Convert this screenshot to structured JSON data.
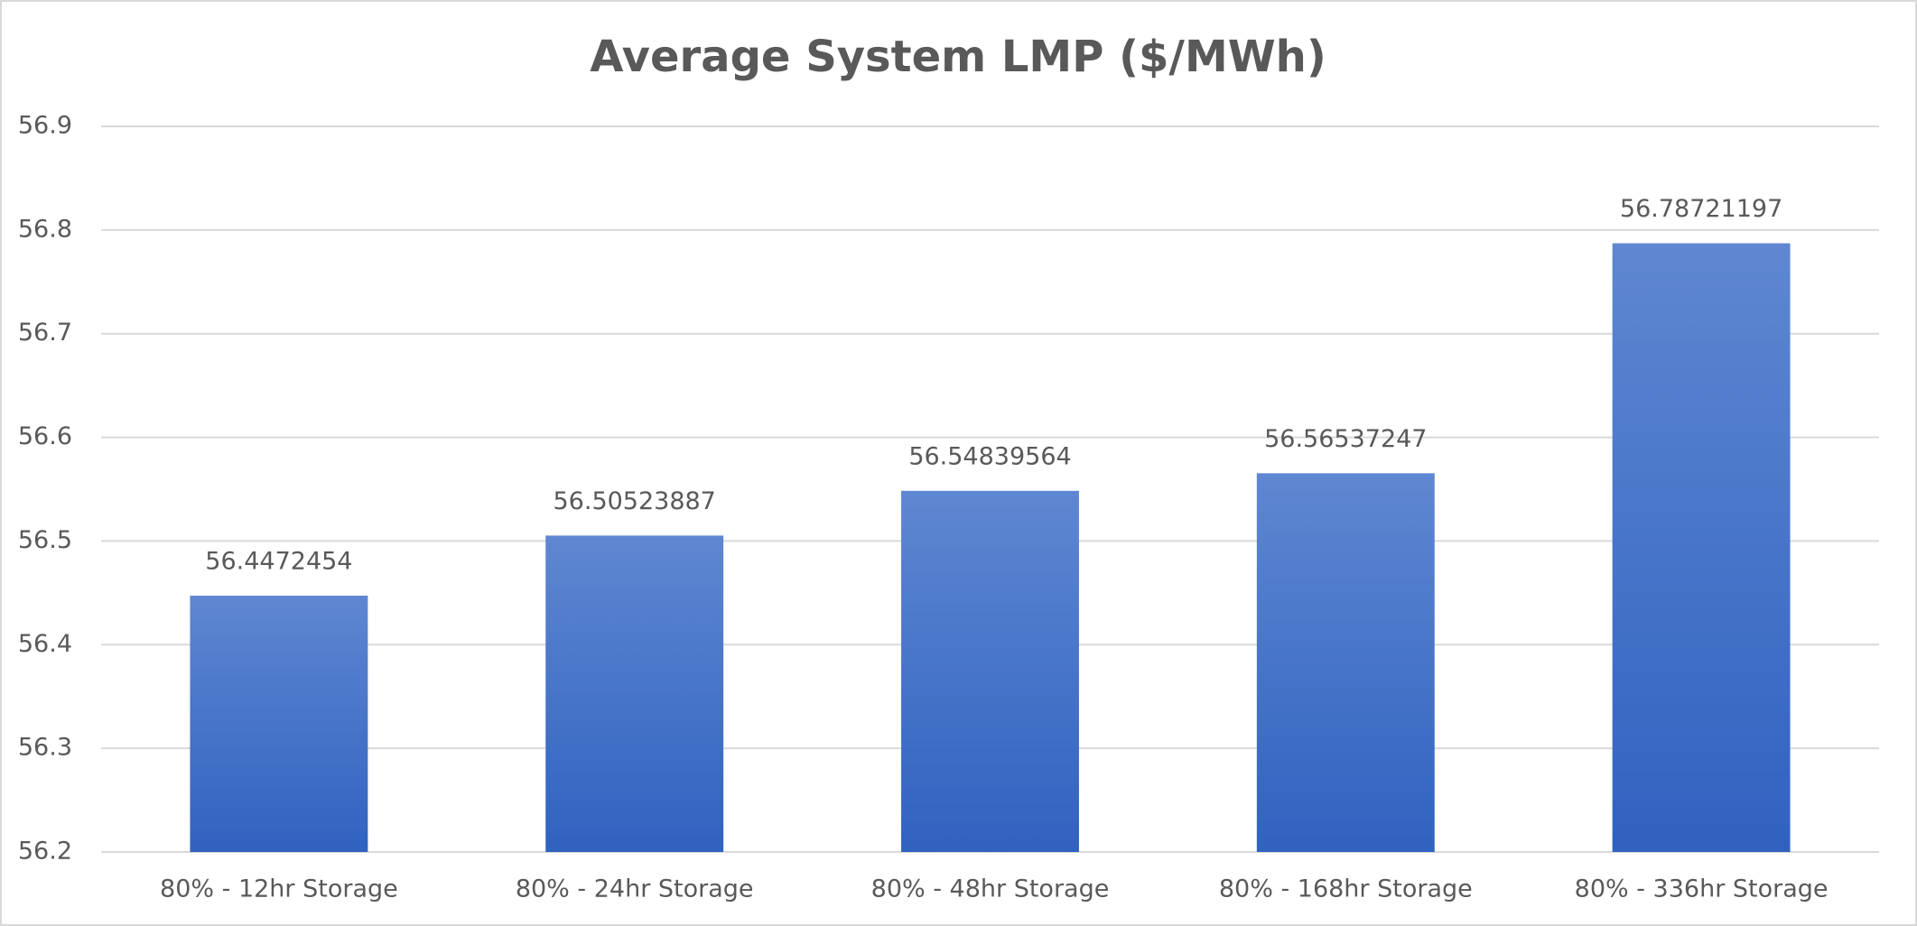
{
  "chart_data": {
    "type": "bar",
    "title": "Average System LMP ($/MWh)",
    "categories": [
      "80% - 12hr Storage",
      "80% - 24hr Storage",
      "80% - 48hr Storage",
      "80% - 168hr Storage",
      "80% - 336hr Storage"
    ],
    "values": [
      56.4472454,
      56.50523887,
      56.54839564,
      56.56537247,
      56.78721197
    ],
    "color": "#4472c4",
    "ylim": [
      56.2,
      56.9
    ],
    "yticks": [
      56.2,
      56.3,
      56.4,
      56.5,
      56.6,
      56.7,
      56.8,
      56.9
    ],
    "grid": true
  }
}
